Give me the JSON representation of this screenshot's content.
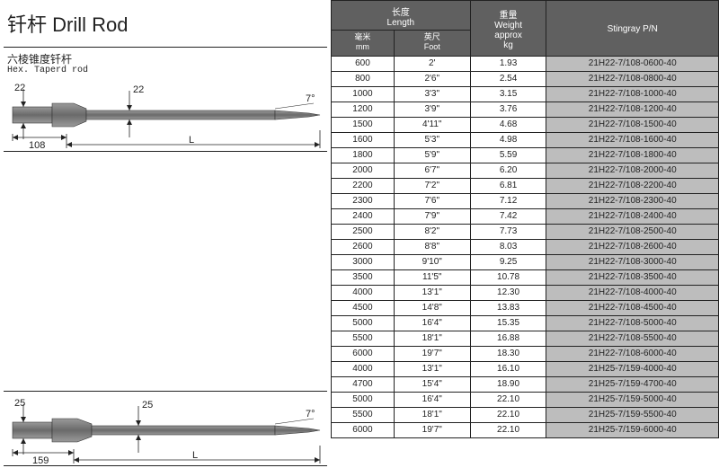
{
  "title": "钎杆 Drill Rod",
  "subtitle_cn": "六棱锥度钎杆",
  "subtitle_en": "Hex. Taperd rod",
  "header": {
    "length_group": "长度\nLength",
    "weight_group": "重量\nWeight\napprox\nkg",
    "pn": "Stingray P/N",
    "mm": "毫米\nmm",
    "foot": "英尺\nFoot"
  },
  "diagram1": {
    "d1": "22",
    "d2": "22",
    "angle": "7°",
    "seg": "108",
    "len": "L"
  },
  "diagram2": {
    "d1": "25",
    "d2": "25",
    "angle": "7°",
    "seg": "159",
    "len": "L"
  },
  "rows_a": [
    {
      "mm": "600",
      "ft": "2'",
      "wt": "1.93",
      "pn": "21H22-7/108-0600-40"
    },
    {
      "mm": "800",
      "ft": "2'6\"",
      "wt": "2.54",
      "pn": "21H22-7/108-0800-40"
    },
    {
      "mm": "1000",
      "ft": "3'3\"",
      "wt": "3.15",
      "pn": "21H22-7/108-1000-40"
    },
    {
      "mm": "1200",
      "ft": "3'9\"",
      "wt": "3.76",
      "pn": "21H22-7/108-1200-40"
    },
    {
      "mm": "1500",
      "ft": "4'11\"",
      "wt": "4.68",
      "pn": "21H22-7/108-1500-40"
    },
    {
      "mm": "1600",
      "ft": "5'3\"",
      "wt": "4.98",
      "pn": "21H22-7/108-1600-40"
    },
    {
      "mm": "1800",
      "ft": "5'9\"",
      "wt": "5.59",
      "pn": "21H22-7/108-1800-40"
    },
    {
      "mm": "2000",
      "ft": "6'7\"",
      "wt": "6.20",
      "pn": "21H22-7/108-2000-40"
    },
    {
      "mm": "2200",
      "ft": "7'2\"",
      "wt": "6.81",
      "pn": "21H22-7/108-2200-40"
    },
    {
      "mm": "2300",
      "ft": "7'6\"",
      "wt": "7.12",
      "pn": "21H22-7/108-2300-40"
    },
    {
      "mm": "2400",
      "ft": "7'9\"",
      "wt": "7.42",
      "pn": "21H22-7/108-2400-40"
    },
    {
      "mm": "2500",
      "ft": "8'2\"",
      "wt": "7.73",
      "pn": "21H22-7/108-2500-40"
    },
    {
      "mm": "2600",
      "ft": "8'8\"",
      "wt": "8.03",
      "pn": "21H22-7/108-2600-40"
    },
    {
      "mm": "3000",
      "ft": "9'10\"",
      "wt": "9.25",
      "pn": "21H22-7/108-3000-40"
    },
    {
      "mm": "3500",
      "ft": "11'5\"",
      "wt": "10.78",
      "pn": "21H22-7/108-3500-40"
    },
    {
      "mm": "4000",
      "ft": "13'1\"",
      "wt": "12.30",
      "pn": "21H22-7/108-4000-40"
    },
    {
      "mm": "4500",
      "ft": "14'8\"",
      "wt": "13.83",
      "pn": "21H22-7/108-4500-40"
    },
    {
      "mm": "5000",
      "ft": "16'4\"",
      "wt": "15.35",
      "pn": "21H22-7/108-5000-40"
    },
    {
      "mm": "5500",
      "ft": "18'1\"",
      "wt": "16.88",
      "pn": "21H22-7/108-5500-40"
    },
    {
      "mm": "6000",
      "ft": "19'7\"",
      "wt": "18.30",
      "pn": "21H22-7/108-6000-40"
    }
  ],
  "rows_b": [
    {
      "mm": "4000",
      "ft": "13'1\"",
      "wt": "16.10",
      "pn": "21H25-7/159-4000-40"
    },
    {
      "mm": "4700",
      "ft": "15'4\"",
      "wt": "18.90",
      "pn": "21H25-7/159-4700-40"
    },
    {
      "mm": "5000",
      "ft": "16'4\"",
      "wt": "22.10",
      "pn": "21H25-7/159-5000-40"
    },
    {
      "mm": "5500",
      "ft": "18'1\"",
      "wt": "22.10",
      "pn": "21H25-7/159-5500-40"
    },
    {
      "mm": "6000",
      "ft": "19'7\"",
      "wt": "22.10",
      "pn": "21H25-7/159-6000-40"
    }
  ],
  "colors": {
    "rod_fill": "#7a7a7a",
    "rod_dark": "#555",
    "page_bg": "#ffffff"
  }
}
